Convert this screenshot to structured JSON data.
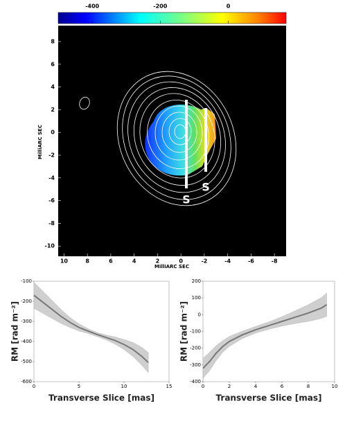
{
  "chart_data": [
    {
      "type": "map",
      "colorbar": {
        "clim": [
          -500,
          170
        ],
        "ticks": [
          -400,
          -200,
          0
        ]
      },
      "xlabel": "MilliARC SEC",
      "ylabel": "MilliARC SEC",
      "xlim": [
        10.5,
        -9
      ],
      "ylim": [
        -10.9,
        9.4
      ],
      "xticks": [
        10,
        8,
        6,
        4,
        2,
        0,
        -2,
        -4,
        -6,
        -8
      ],
      "yticks": [
        8,
        6,
        4,
        2,
        0,
        -2,
        -4,
        -6,
        -8,
        -10
      ],
      "annotations": [
        "S",
        "S"
      ]
    },
    {
      "type": "line",
      "xlabel": "Transverse Slice [mas]",
      "ylabel": "RM [rad m⁻²]",
      "x": [
        0,
        1,
        2,
        3,
        4,
        5,
        6,
        7,
        8,
        9,
        10,
        11,
        12,
        12.7
      ],
      "values": [
        -170,
        -205,
        -240,
        -275,
        -305,
        -330,
        -348,
        -365,
        -380,
        -395,
        -415,
        -440,
        -475,
        -505
      ],
      "errors": [
        65,
        55,
        45,
        35,
        25,
        18,
        12,
        10,
        12,
        18,
        25,
        35,
        45,
        50
      ],
      "color": "#777777",
      "band_color": "#cfcfcf",
      "xlim": [
        0,
        15
      ],
      "ylim": [
        -600,
        -100
      ],
      "xticks": [
        0,
        5,
        10,
        15
      ],
      "yticks": [
        -100,
        -200,
        -300,
        -400,
        -500,
        -600
      ]
    },
    {
      "type": "line",
      "xlabel": "Transverse Slice [mas]",
      "ylabel": "RM [rad m⁻²]",
      "x": [
        0,
        0.5,
        1,
        1.5,
        2,
        3,
        4,
        5,
        6,
        7,
        8,
        9,
        9.4
      ],
      "values": [
        -320,
        -280,
        -230,
        -190,
        -160,
        -120,
        -90,
        -65,
        -40,
        -15,
        10,
        40,
        60
      ],
      "errors": [
        60,
        55,
        45,
        35,
        30,
        22,
        20,
        22,
        28,
        38,
        50,
        62,
        70
      ],
      "color": "#777777",
      "band_color": "#cfcfcf",
      "xlim": [
        0,
        10
      ],
      "ylim": [
        -400,
        200
      ],
      "xticks": [
        0,
        2,
        4,
        6,
        8,
        10
      ],
      "yticks": [
        200,
        100,
        0,
        -100,
        -200,
        -300,
        -400
      ]
    }
  ]
}
